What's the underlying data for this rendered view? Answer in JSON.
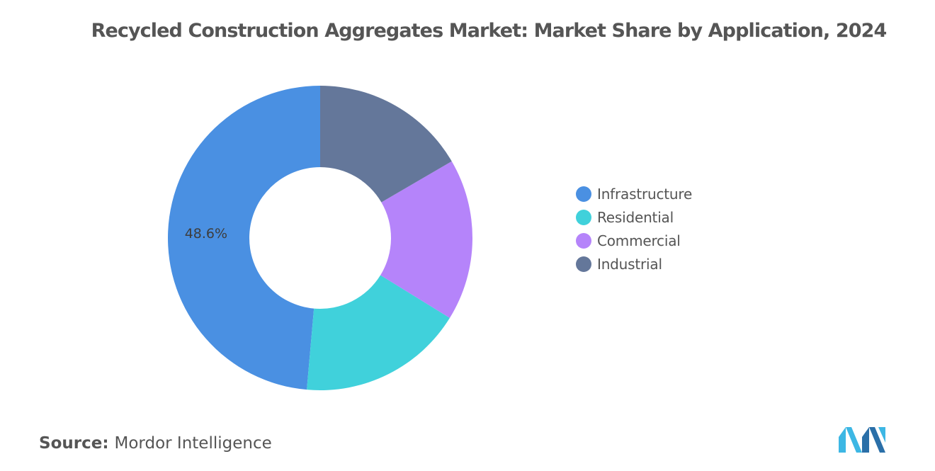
{
  "chart_data": {
    "type": "pie",
    "title": "Recycled Construction Aggregates Market: Market Share by Application, 2024",
    "categories": [
      "Infrastructure",
      "Residential",
      "Commercial",
      "Industrial"
    ],
    "values": [
      48.6,
      17.6,
      17.2,
      16.6
    ],
    "data_labels": [
      "48.6%",
      null,
      null,
      null
    ],
    "colors": [
      "#4A90E2",
      "#40D1DB",
      "#B584FA",
      "#64779A"
    ],
    "donut": true,
    "legend_position": "right"
  },
  "footer": {
    "source_label": "Source:",
    "source_value": "Mordor Intelligence"
  },
  "logo": {
    "icon": "mordor-intelligence-logo",
    "colors": [
      "#3DB7E4",
      "#2A6FA8"
    ]
  }
}
